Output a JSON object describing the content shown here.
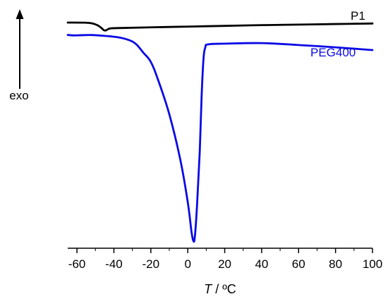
{
  "chart_data": {
    "type": "line",
    "title": "",
    "xlabel_italic": "T",
    "xlabel_rest": " / ºC",
    "ylabel": "exo",
    "xlim": [
      -65,
      100
    ],
    "xticks": [
      -60,
      -40,
      -20,
      0,
      20,
      40,
      60,
      80,
      100
    ],
    "x_tick_labels": [
      "-60",
      "-40",
      "-20",
      "0",
      "20",
      "40",
      "60",
      "80",
      "100"
    ],
    "grid": false,
    "y_axis": "arrow-up",
    "series": [
      {
        "name": "P1",
        "color": "#000000",
        "points": [
          [
            -65,
            0.0
          ],
          [
            -56,
            -0.1
          ],
          [
            -52,
            -0.8
          ],
          [
            -49,
            -2.8
          ],
          [
            -47,
            -5.5
          ],
          [
            -45.5,
            -8.2
          ],
          [
            -44.5,
            -8.6
          ],
          [
            -43.5,
            -7.6
          ],
          [
            -42,
            -6.4
          ],
          [
            -38,
            -6.0
          ],
          [
            -20,
            -5.2
          ],
          [
            0,
            -4.4
          ],
          [
            20,
            -3.6
          ],
          [
            40,
            -2.8
          ],
          [
            60,
            -2.2
          ],
          [
            80,
            -1.6
          ],
          [
            100,
            -1.0
          ]
        ]
      },
      {
        "name": "PEG400",
        "color": "#0a0ae6",
        "points": [
          [
            -65,
            -13.5
          ],
          [
            -62,
            -14.0
          ],
          [
            -58,
            -13.8
          ],
          [
            -52,
            -13.6
          ],
          [
            -45,
            -14.5
          ],
          [
            -38,
            -16.0
          ],
          [
            -32,
            -19.0
          ],
          [
            -28,
            -23.5
          ],
          [
            -24,
            -33.0
          ],
          [
            -20,
            -43.0
          ],
          [
            -16,
            -63.0
          ],
          [
            -10,
            -100.0
          ],
          [
            -4,
            -150.0
          ],
          [
            0,
            -196.0
          ],
          [
            2,
            -228.0
          ],
          [
            3,
            -238.0
          ],
          [
            3.8,
            -234.0
          ],
          [
            5,
            -200.0
          ],
          [
            6.5,
            -140.0
          ],
          [
            7.5,
            -80.0
          ],
          [
            8.5,
            -40.0
          ],
          [
            9.5,
            -27.0
          ],
          [
            11,
            -23.8
          ],
          [
            20,
            -23.0
          ],
          [
            40,
            -22.4
          ],
          [
            60,
            -24.5
          ],
          [
            80,
            -27.0
          ],
          [
            100,
            -30.0
          ]
        ]
      }
    ]
  }
}
